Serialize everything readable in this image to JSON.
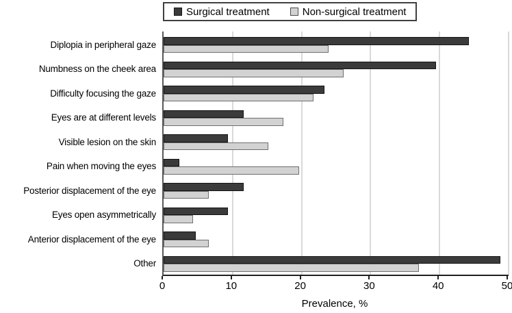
{
  "chart_data": {
    "type": "bar",
    "orientation": "horizontal",
    "title": "",
    "xlabel": "Prevalence, %",
    "xlim": [
      0,
      50
    ],
    "xticks": [
      0,
      10,
      20,
      30,
      40,
      50
    ],
    "grid": "vertical gridlines every 10 units, light gray",
    "legend_position": "top-center",
    "categories": [
      "Diplopia in peripheral gaze",
      "Numbness on the cheek area",
      "Difficulty focusing the gaze",
      "Eyes are at different levels",
      "Visible lesion on the skin",
      "Pain when moving the eyes",
      "Posterior displacement of the eye",
      "Eyes open asymmetrically",
      "Anterior displacement of the eye",
      "Other"
    ],
    "series": [
      {
        "name": "Surgical treatment",
        "color": "#3b3b3b",
        "border_color": "#141414",
        "values": [
          44.2,
          39.5,
          23.3,
          11.6,
          9.3,
          2.3,
          11.6,
          9.3,
          4.7,
          48.8
        ]
      },
      {
        "name": "Non-surgical treatment",
        "color": "#d2d2d2",
        "border_color": "#6e6e6e",
        "values": [
          23.9,
          26.1,
          21.7,
          17.4,
          15.2,
          19.6,
          6.5,
          4.3,
          6.5,
          37.0
        ]
      }
    ],
    "colors": {
      "gridline": "#d9d9d9",
      "axis": "#1f1f1f",
      "y_axis": "#595959",
      "background": "#ffffff"
    }
  }
}
